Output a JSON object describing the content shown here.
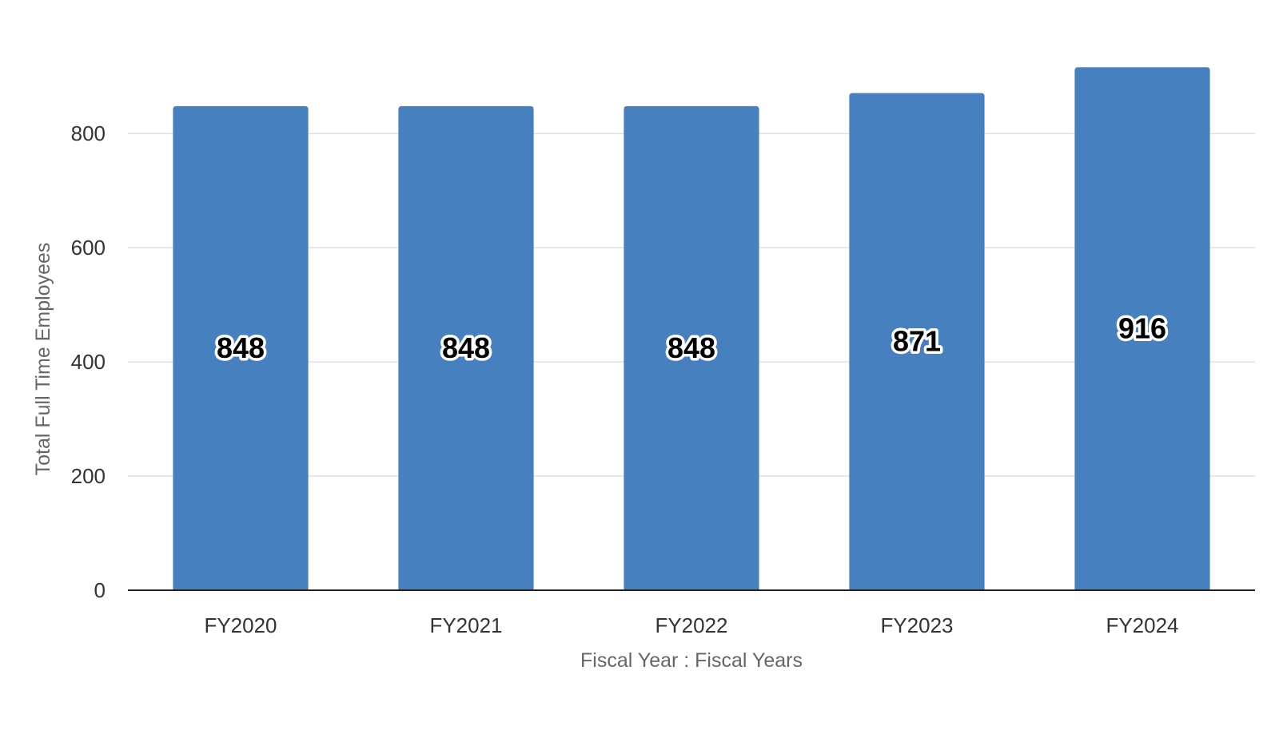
{
  "chart_data": {
    "type": "bar",
    "categories": [
      "FY2020",
      "FY2021",
      "FY2022",
      "FY2023",
      "FY2024"
    ],
    "values": [
      848,
      848,
      848,
      871,
      916
    ],
    "data_labels": [
      "848",
      "848",
      "848",
      "871",
      "916"
    ],
    "xlabel": "Fiscal Year : Fiscal Years",
    "ylabel": "Total Full Time Employees",
    "ylim": [
      0,
      950
    ],
    "yticks": [
      0,
      200,
      400,
      600,
      800
    ],
    "ytick_labels": [
      "0",
      "200",
      "400",
      "600",
      "800"
    ],
    "grid": true,
    "legend": "none",
    "bar_color": "#4680bf"
  }
}
